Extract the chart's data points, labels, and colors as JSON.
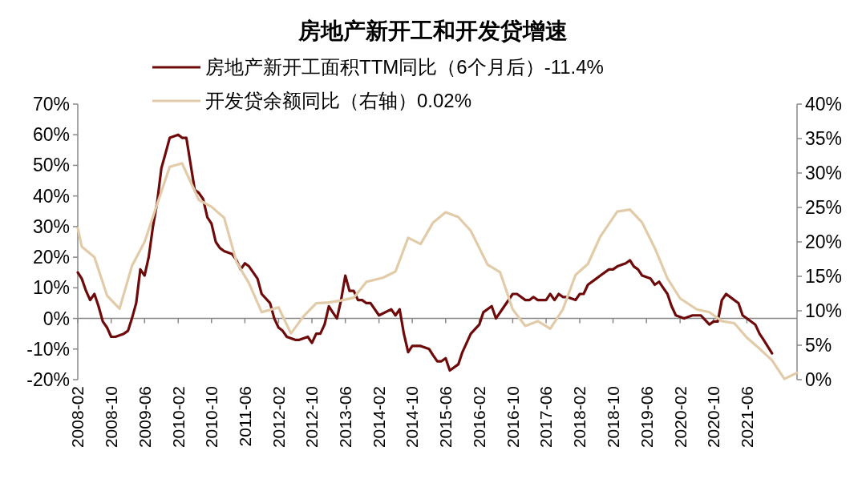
{
  "chart_data": {
    "type": "line",
    "title": "房地产新开工和开发贷增速",
    "legend": "top",
    "marker": "none",
    "line_style": "solid",
    "xlim": [
      "2008-02",
      "2022-06"
    ],
    "xticks": [
      {
        "value": "2008-02",
        "label": "2008-02"
      },
      {
        "value": "2008-10",
        "label": "2008-10"
      },
      {
        "value": "2009-06",
        "label": "2009-06"
      },
      {
        "value": "2010-02",
        "label": "2010-02"
      },
      {
        "value": "2010-10",
        "label": "2010-10"
      },
      {
        "value": "2011-06",
        "label": "2011-06"
      },
      {
        "value": "2012-02",
        "label": "2012-02"
      },
      {
        "value": "2012-10",
        "label": "2012-10"
      },
      {
        "value": "2013-06",
        "label": "2013-06"
      },
      {
        "value": "2014-02",
        "label": "2014-02"
      },
      {
        "value": "2014-10",
        "label": "2014-10"
      },
      {
        "value": "2015-06",
        "label": "2015-06"
      },
      {
        "value": "2016-02",
        "label": "2016-02"
      },
      {
        "value": "2016-10",
        "label": "2016-10"
      },
      {
        "value": "2017-06",
        "label": "2017-06"
      },
      {
        "value": "2018-02",
        "label": "2018-02"
      },
      {
        "value": "2018-10",
        "label": "2018-10"
      },
      {
        "value": "2019-06",
        "label": "2019-06"
      },
      {
        "value": "2020-02",
        "label": "2020-02"
      },
      {
        "value": "2020-10",
        "label": "2020-10"
      },
      {
        "value": "2021-06",
        "label": "2021-06"
      }
    ],
    "ylim": [
      -20,
      70
    ],
    "yticks": [
      {
        "value": -20,
        "label": "-20%"
      },
      {
        "value": -10,
        "label": "-10%"
      },
      {
        "value": 0,
        "label": "0%"
      },
      {
        "value": 10,
        "label": "10%"
      },
      {
        "value": 20,
        "label": "20%"
      },
      {
        "value": 30,
        "label": "30%"
      },
      {
        "value": 40,
        "label": "40%"
      },
      {
        "value": 50,
        "label": "50%"
      },
      {
        "value": 60,
        "label": "60%"
      },
      {
        "value": 70,
        "label": "70%"
      }
    ],
    "y2lim": [
      0,
      40
    ],
    "y2ticks": [
      {
        "value": 0,
        "label": "0%"
      },
      {
        "value": 5,
        "label": "5%"
      },
      {
        "value": 10,
        "label": "10%"
      },
      {
        "value": 15,
        "label": "15%"
      },
      {
        "value": 20,
        "label": "20%"
      },
      {
        "value": 25,
        "label": "25%"
      },
      {
        "value": 30,
        "label": "30%"
      },
      {
        "value": 35,
        "label": "35%"
      },
      {
        "value": 40,
        "label": "40%"
      }
    ],
    "series": [
      {
        "name": "房地产新开工面积TTM同比（6个月后）-11.4%",
        "color": "#6e0a0a",
        "x": [
          "2008-02",
          "2008-03",
          "2008-04",
          "2008-05",
          "2008-06",
          "2008-07",
          "2008-08",
          "2008-09",
          "2008-10",
          "2008-11",
          "2009-01",
          "2009-02",
          "2009-03",
          "2009-04",
          "2009-05",
          "2009-06",
          "2009-07",
          "2009-08",
          "2009-09",
          "2009-10",
          "2009-11",
          "2009-12",
          "2010-02",
          "2010-03",
          "2010-04",
          "2010-06",
          "2010-07",
          "2010-08",
          "2010-09",
          "2010-10",
          "2010-11",
          "2010-12",
          "2011-01",
          "2011-03",
          "2011-04",
          "2011-05",
          "2011-06",
          "2011-07",
          "2011-09",
          "2011-10",
          "2011-12",
          "2012-01",
          "2012-02",
          "2012-03",
          "2012-04",
          "2012-06",
          "2012-07",
          "2012-09",
          "2012-10",
          "2012-11",
          "2012-12",
          "2013-01",
          "2013-02",
          "2013-03",
          "2013-04",
          "2013-05",
          "2013-06",
          "2013-07",
          "2013-08",
          "2013-09",
          "2013-10",
          "2013-11",
          "2013-12",
          "2014-02",
          "2014-05",
          "2014-06",
          "2014-07",
          "2014-08",
          "2014-09",
          "2014-10",
          "2014-12",
          "2015-02",
          "2015-03",
          "2015-04",
          "2015-05",
          "2015-06",
          "2015-07",
          "2015-09",
          "2015-10",
          "2015-12",
          "2016-02",
          "2016-03",
          "2016-05",
          "2016-06",
          "2016-08",
          "2016-10",
          "2016-11",
          "2017-01",
          "2017-02",
          "2017-03",
          "2017-04",
          "2017-06",
          "2017-07",
          "2017-08",
          "2017-09",
          "2017-10",
          "2017-11",
          "2018-01",
          "2018-02",
          "2018-03",
          "2018-04",
          "2018-06",
          "2018-07",
          "2018-09",
          "2018-10",
          "2018-11",
          "2019-01",
          "2019-02",
          "2019-03",
          "2019-04",
          "2019-05",
          "2019-07",
          "2019-08",
          "2019-09",
          "2019-10",
          "2019-11",
          "2019-12",
          "2020-01",
          "2020-03",
          "2020-05",
          "2020-07",
          "2020-09",
          "2020-10",
          "2020-11",
          "2020-12",
          "2021-01",
          "2021-03",
          "2021-04",
          "2021-05",
          "2021-06",
          "2021-08",
          "2021-09",
          "2021-10",
          "2021-12"
        ],
        "values": [
          15,
          13,
          9,
          6,
          8,
          4,
          -1,
          -3,
          -6,
          -6,
          -5,
          -4,
          0,
          5,
          16,
          14,
          20,
          30,
          38,
          49,
          54,
          59,
          60,
          59,
          59,
          42,
          41,
          39,
          33,
          31,
          25,
          23,
          22,
          21,
          19,
          16,
          18,
          17,
          13,
          8,
          5,
          0,
          -3,
          -4,
          -6,
          -7,
          -7,
          -6,
          -8,
          -5,
          -5,
          -2,
          4,
          2,
          0,
          6,
          14,
          9,
          9,
          6,
          6,
          5,
          5,
          1,
          3,
          1,
          3,
          -5,
          -11,
          -9,
          -9,
          -10,
          -12,
          -14,
          -14,
          -13,
          -17,
          -15,
          -11,
          -5,
          -2,
          2,
          4,
          0,
          4,
          8,
          8,
          6,
          6,
          7,
          6,
          6,
          8,
          6,
          8,
          7,
          7,
          6,
          8,
          8,
          11,
          13,
          14,
          16,
          16,
          17,
          18,
          19,
          17,
          16,
          14,
          13,
          11,
          12,
          10,
          8,
          4,
          1,
          0,
          1,
          1,
          -2,
          -1,
          -1,
          6,
          8,
          6,
          5,
          1,
          0,
          -2,
          -5,
          -7,
          -11.4
        ]
      },
      {
        "name": "开发贷余额同比（右轴）0.02%",
        "color": "#e2cba9",
        "axis": "y2",
        "x": [
          "2008-02",
          "2008-03",
          "2008-06",
          "2008-09",
          "2008-12",
          "2009-03",
          "2009-06",
          "2009-09",
          "2009-12",
          "2010-03",
          "2010-07",
          "2010-10",
          "2011-01",
          "2011-04",
          "2011-07",
          "2011-10",
          "2012-02",
          "2012-05",
          "2012-08",
          "2012-11",
          "2013-02",
          "2013-05",
          "2013-08",
          "2013-11",
          "2014-03",
          "2014-06",
          "2014-09",
          "2014-12",
          "2015-03",
          "2015-06",
          "2015-09",
          "2015-12",
          "2016-04",
          "2016-07",
          "2016-10",
          "2017-01",
          "2017-04",
          "2017-07",
          "2017-10",
          "2018-01",
          "2018-04",
          "2018-07",
          "2018-11",
          "2019-02",
          "2019-05",
          "2019-08",
          "2019-11",
          "2020-02",
          "2020-06",
          "2020-09",
          "2020-12",
          "2021-03",
          "2021-06",
          "2021-09",
          "2021-12",
          "2022-03",
          "2022-06"
        ],
        "values": [
          22,
          19.3,
          17.8,
          12.2,
          10.3,
          16.5,
          20,
          25.5,
          30.9,
          31.4,
          26.1,
          25.1,
          23.5,
          17.1,
          14,
          9.8,
          10.5,
          6.7,
          9.2,
          11.1,
          11.2,
          11.5,
          11.9,
          14.2,
          14.8,
          15.7,
          20.6,
          19.7,
          22.8,
          24.3,
          23.6,
          21.6,
          16.7,
          15.6,
          10.2,
          7.8,
          8.5,
          7.4,
          10.2,
          15.2,
          16.8,
          20.8,
          24.4,
          24.7,
          22.8,
          19.1,
          14.7,
          11.8,
          10.2,
          9.8,
          8.5,
          8.2,
          6.1,
          4.5,
          2.8,
          0.1,
          1.0
        ]
      }
    ]
  }
}
